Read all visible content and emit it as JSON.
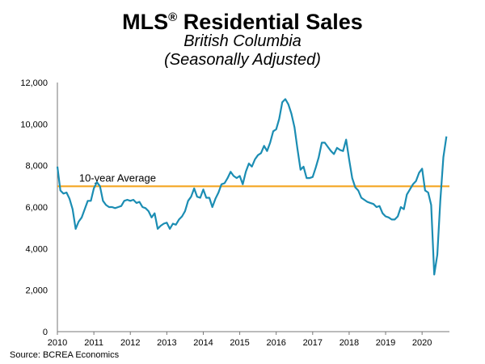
{
  "header": {
    "title": "MLS",
    "title_mark": "®",
    "title_rest": " Residential Sales",
    "subtitle": "British Columbia",
    "subtitle2": "(Seasonally Adjusted)"
  },
  "source": "Source: BCREA Economics",
  "colors": {
    "series": "#1b8db3",
    "average": "#f4a622",
    "axis": "#777777"
  },
  "chart_data": {
    "type": "line",
    "title": "MLS® Residential Sales",
    "xlabel": "",
    "ylabel": "",
    "xlim": [
      2010,
      2020.75
    ],
    "ylim": [
      0,
      12000
    ],
    "x_ticks": [
      2010,
      2011,
      2012,
      2013,
      2014,
      2015,
      2016,
      2017,
      2018,
      2019,
      2020
    ],
    "y_ticks": [
      0,
      2000,
      4000,
      6000,
      8000,
      10000,
      12000
    ],
    "y_tick_labels": [
      "0",
      "2,000",
      "4,000",
      "6,000",
      "8,000",
      "10,000",
      "12,000"
    ],
    "reference_line": {
      "label": "10-year Average",
      "value": 7000
    },
    "series": [
      {
        "name": "Residential Sales",
        "points": [
          [
            2010.0,
            7950
          ],
          [
            2010.083,
            6800
          ],
          [
            2010.167,
            6650
          ],
          [
            2010.25,
            6700
          ],
          [
            2010.333,
            6400
          ],
          [
            2010.417,
            5900
          ],
          [
            2010.5,
            4950
          ],
          [
            2010.583,
            5300
          ],
          [
            2010.667,
            5500
          ],
          [
            2010.75,
            5900
          ],
          [
            2010.833,
            6300
          ],
          [
            2010.917,
            6300
          ],
          [
            2011.0,
            6900
          ],
          [
            2011.083,
            7200
          ],
          [
            2011.167,
            7000
          ],
          [
            2011.25,
            6300
          ],
          [
            2011.333,
            6100
          ],
          [
            2011.417,
            6000
          ],
          [
            2011.5,
            6000
          ],
          [
            2011.583,
            5950
          ],
          [
            2011.667,
            6000
          ],
          [
            2011.75,
            6050
          ],
          [
            2011.833,
            6300
          ],
          [
            2011.917,
            6350
          ],
          [
            2012.0,
            6300
          ],
          [
            2012.083,
            6350
          ],
          [
            2012.167,
            6200
          ],
          [
            2012.25,
            6250
          ],
          [
            2012.333,
            6000
          ],
          [
            2012.417,
            5950
          ],
          [
            2012.5,
            5800
          ],
          [
            2012.583,
            5500
          ],
          [
            2012.667,
            5700
          ],
          [
            2012.75,
            4950
          ],
          [
            2012.833,
            5100
          ],
          [
            2012.917,
            5200
          ],
          [
            2013.0,
            5250
          ],
          [
            2013.083,
            4950
          ],
          [
            2013.167,
            5200
          ],
          [
            2013.25,
            5150
          ],
          [
            2013.333,
            5400
          ],
          [
            2013.417,
            5550
          ],
          [
            2013.5,
            5800
          ],
          [
            2013.583,
            6300
          ],
          [
            2013.667,
            6500
          ],
          [
            2013.75,
            6900
          ],
          [
            2013.833,
            6500
          ],
          [
            2013.917,
            6450
          ],
          [
            2014.0,
            6850
          ],
          [
            2014.083,
            6450
          ],
          [
            2014.167,
            6450
          ],
          [
            2014.25,
            6000
          ],
          [
            2014.333,
            6400
          ],
          [
            2014.417,
            6700
          ],
          [
            2014.5,
            7100
          ],
          [
            2014.583,
            7150
          ],
          [
            2014.667,
            7400
          ],
          [
            2014.75,
            7700
          ],
          [
            2014.833,
            7500
          ],
          [
            2014.917,
            7400
          ],
          [
            2015.0,
            7500
          ],
          [
            2015.083,
            7100
          ],
          [
            2015.167,
            7700
          ],
          [
            2015.25,
            8100
          ],
          [
            2015.333,
            7950
          ],
          [
            2015.417,
            8300
          ],
          [
            2015.5,
            8500
          ],
          [
            2015.583,
            8600
          ],
          [
            2015.667,
            8950
          ],
          [
            2015.75,
            8700
          ],
          [
            2015.833,
            9100
          ],
          [
            2015.917,
            9650
          ],
          [
            2016.0,
            9750
          ],
          [
            2016.083,
            10250
          ],
          [
            2016.167,
            11050
          ],
          [
            2016.25,
            11200
          ],
          [
            2016.333,
            10950
          ],
          [
            2016.417,
            10500
          ],
          [
            2016.5,
            9850
          ],
          [
            2016.583,
            8800
          ],
          [
            2016.667,
            7800
          ],
          [
            2016.75,
            7950
          ],
          [
            2016.833,
            7400
          ],
          [
            2016.917,
            7400
          ],
          [
            2017.0,
            7450
          ],
          [
            2017.083,
            7900
          ],
          [
            2017.167,
            8400
          ],
          [
            2017.25,
            9100
          ],
          [
            2017.333,
            9100
          ],
          [
            2017.417,
            8900
          ],
          [
            2017.5,
            8700
          ],
          [
            2017.583,
            8550
          ],
          [
            2017.667,
            8850
          ],
          [
            2017.75,
            8750
          ],
          [
            2017.833,
            8700
          ],
          [
            2017.917,
            9250
          ],
          [
            2018.0,
            8300
          ],
          [
            2018.083,
            7400
          ],
          [
            2018.167,
            6950
          ],
          [
            2018.25,
            6800
          ],
          [
            2018.333,
            6450
          ],
          [
            2018.417,
            6350
          ],
          [
            2018.5,
            6250
          ],
          [
            2018.583,
            6200
          ],
          [
            2018.667,
            6150
          ],
          [
            2018.75,
            6000
          ],
          [
            2018.833,
            6050
          ],
          [
            2018.917,
            5700
          ],
          [
            2019.0,
            5550
          ],
          [
            2019.083,
            5500
          ],
          [
            2019.167,
            5400
          ],
          [
            2019.25,
            5400
          ],
          [
            2019.333,
            5550
          ],
          [
            2019.417,
            6000
          ],
          [
            2019.5,
            5900
          ],
          [
            2019.583,
            6600
          ],
          [
            2019.667,
            6850
          ],
          [
            2019.75,
            7100
          ],
          [
            2019.833,
            7250
          ],
          [
            2019.917,
            7650
          ],
          [
            2020.0,
            7850
          ],
          [
            2020.083,
            6800
          ],
          [
            2020.167,
            6700
          ],
          [
            2020.25,
            6100
          ],
          [
            2020.333,
            2750
          ],
          [
            2020.417,
            3700
          ],
          [
            2020.5,
            6300
          ],
          [
            2020.583,
            8400
          ],
          [
            2020.667,
            9400
          ]
        ]
      }
    ]
  }
}
